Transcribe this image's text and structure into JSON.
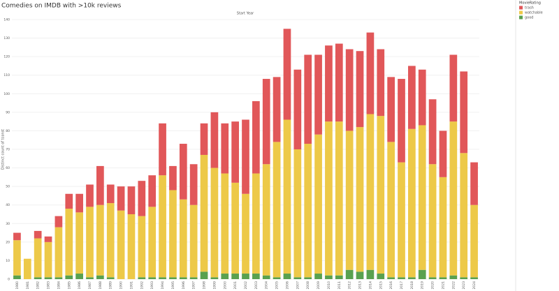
{
  "chart_data": {
    "type": "stacked_bar",
    "title": "Comedies on IMDB with >10k reviews",
    "x_axis_label": "Start Year",
    "y_axis_label": "Distinct count of tconst",
    "legend_title": "MovieRating",
    "categories": [
      "1980",
      "1981",
      "1982",
      "1983",
      "1984",
      "1985",
      "1986",
      "1987",
      "1988",
      "1989",
      "1990",
      "1991",
      "1992",
      "1993",
      "1994",
      "1995",
      "1996",
      "1997",
      "1998",
      "1999",
      "2000",
      "2001",
      "2002",
      "2003",
      "2004",
      "2005",
      "2006",
      "2007",
      "2008",
      "2009",
      "2010",
      "2011",
      "2012",
      "2013",
      "2014",
      "2015",
      "2016",
      "2017",
      "2018",
      "2019",
      "2020",
      "2021",
      "2022",
      "2023",
      "2024"
    ],
    "series": [
      {
        "name": "trash",
        "color": "#e15759",
        "values": [
          4,
          0,
          4,
          3,
          6,
          8,
          10,
          12,
          21,
          10,
          13,
          15,
          19,
          17,
          28,
          13,
          30,
          22,
          17,
          30,
          27,
          33,
          40,
          39,
          46,
          35,
          49,
          43,
          48,
          43,
          41,
          42,
          44,
          41,
          44,
          36,
          35,
          45,
          34,
          30,
          35,
          25,
          36,
          44,
          23
        ]
      },
      {
        "name": "watchable",
        "color": "#edc948",
        "values": [
          19,
          11,
          21,
          19,
          27,
          36,
          33,
          38,
          38,
          40,
          37,
          35,
          33,
          38,
          55,
          47,
          42,
          39,
          63,
          59,
          54,
          49,
          43,
          54,
          60,
          73,
          83,
          69,
          72,
          75,
          83,
          83,
          75,
          78,
          84,
          85,
          73,
          62,
          80,
          78,
          61,
          54,
          83,
          67,
          39
        ]
      },
      {
        "name": "good",
        "color": "#59a14f",
        "values": [
          2,
          0,
          1,
          1,
          1,
          2,
          3,
          1,
          2,
          1,
          0,
          0,
          1,
          1,
          1,
          1,
          1,
          1,
          4,
          1,
          3,
          3,
          3,
          3,
          2,
          1,
          3,
          1,
          1,
          3,
          2,
          2,
          5,
          4,
          5,
          3,
          1,
          1,
          1,
          5,
          1,
          1,
          2,
          1,
          1
        ]
      }
    ],
    "ylim": [
      0,
      140
    ],
    "yticks": [
      0,
      10,
      20,
      30,
      40,
      50,
      60,
      70,
      80,
      90,
      100,
      110,
      120,
      130,
      140
    ],
    "grid": true
  }
}
